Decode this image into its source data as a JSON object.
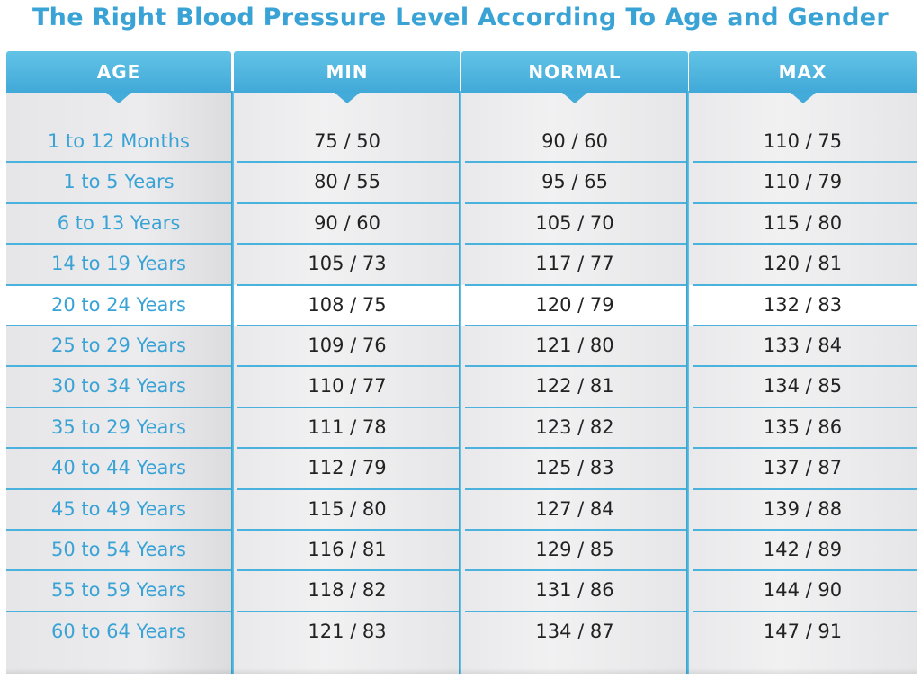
{
  "chart_data": {
    "type": "table",
    "title": "The Right Blood Pressure Level According To Age and Gender",
    "columns": [
      "AGE",
      "MIN",
      "NORMAL",
      "MAX"
    ],
    "rows": [
      {
        "age": "1 to 12 Months",
        "min": "75 / 50",
        "normal": "90 / 60",
        "max": "110 / 75"
      },
      {
        "age": "1 to 5 Years",
        "min": "80 / 55",
        "normal": "95 / 65",
        "max": "110 / 79"
      },
      {
        "age": "6 to 13 Years",
        "min": "90 / 60",
        "normal": "105 / 70",
        "max": "115 / 80"
      },
      {
        "age": "14 to 19 Years",
        "min": "105 / 73",
        "normal": "117 / 77",
        "max": "120 / 81"
      },
      {
        "age": "20 to 24 Years",
        "min": "108 / 75",
        "normal": "120 / 79",
        "max": "132 / 83"
      },
      {
        "age": "25 to 29 Years",
        "min": "109 / 76",
        "normal": "121 / 80",
        "max": "133 / 84"
      },
      {
        "age": "30 to 34 Years",
        "min": "110 / 77",
        "normal": "122 / 81",
        "max": "134 / 85"
      },
      {
        "age": "35 to 29 Years",
        "min": "111 / 78",
        "normal": "123 / 82",
        "max": "135 / 86"
      },
      {
        "age": "40 to 44 Years",
        "min": "112 / 79",
        "normal": "125 / 83",
        "max": "137 / 87"
      },
      {
        "age": "45 to 49 Years",
        "min": "115 / 80",
        "normal": "127 / 84",
        "max": "139 / 88"
      },
      {
        "age": "50 to 54 Years",
        "min": "116 / 81",
        "normal": "129 / 85",
        "max": "142 / 89"
      },
      {
        "age": "55 to 59 Years",
        "min": "118 / 82",
        "normal": "131 / 86",
        "max": "144 / 90"
      },
      {
        "age": "60 to 64 Years",
        "min": "121 / 83",
        "normal": "134 / 87",
        "max": "147 / 91"
      }
    ],
    "highlighted_row": "20 to 24 Years",
    "colors": {
      "header": "#45acd9",
      "age_text": "#3aa3d6",
      "value_text": "#222222",
      "row_line": "#4bb2dd"
    }
  }
}
